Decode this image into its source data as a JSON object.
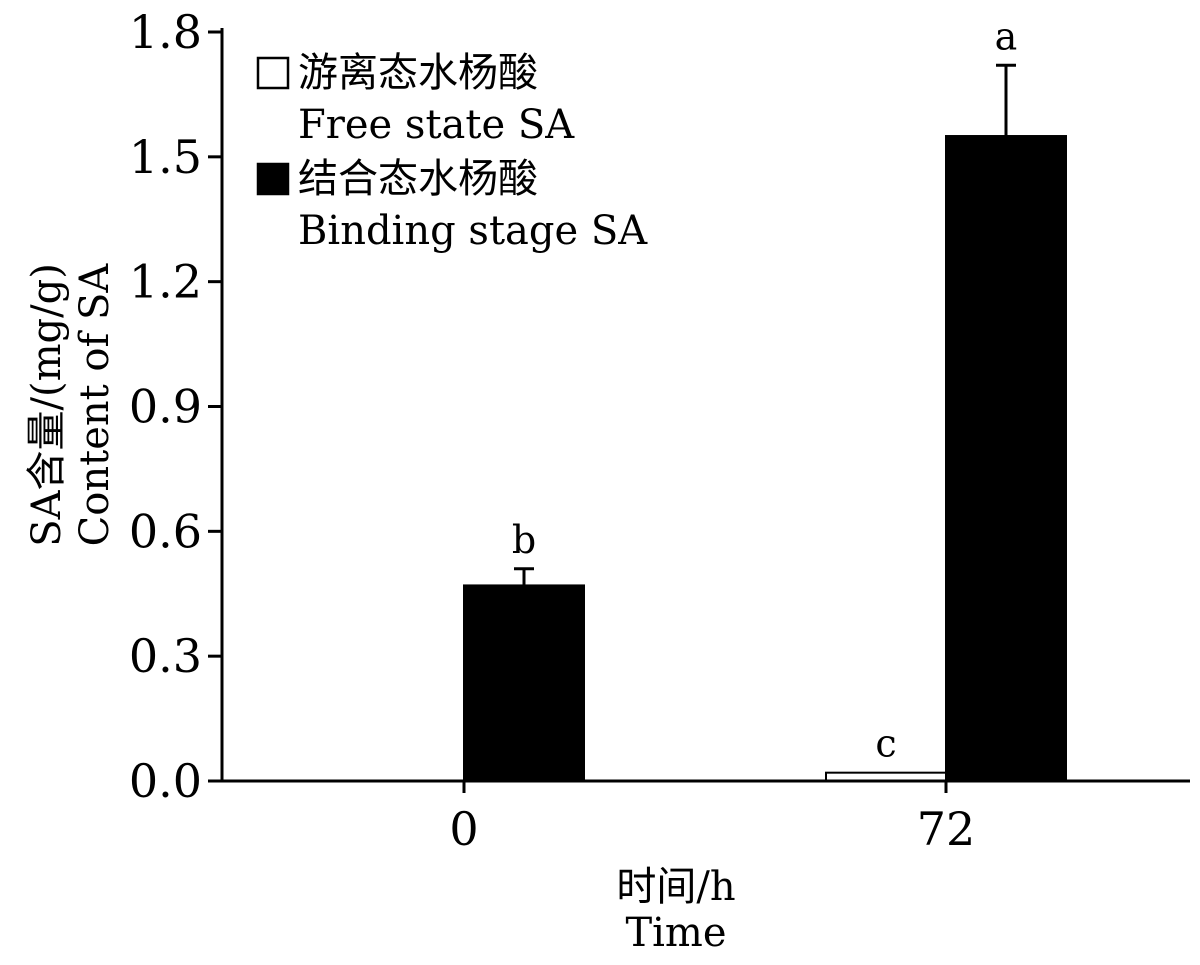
{
  "chart_data": {
    "type": "bar",
    "categories": [
      "0",
      "72"
    ],
    "series": [
      {
        "name": "游离态水杨酸",
        "name_en": "Free state SA",
        "values": [
          0.0,
          0.02
        ],
        "errors": [
          0.0,
          0.0
        ],
        "letters": [
          "",
          "c"
        ]
      },
      {
        "name": "结合态水杨酸",
        "name_en": "Binding stage SA",
        "values": [
          0.47,
          1.55
        ],
        "errors": [
          0.04,
          0.17
        ],
        "letters": [
          "b",
          "a"
        ]
      }
    ],
    "xlabel": "时间/h",
    "xlabel_en": "Time",
    "ylabel": "SA含量/(mg/g)",
    "ylabel_en": "Content of SA",
    "ylim": [
      0,
      1.8
    ],
    "yticks": [
      "0.0",
      "0.3",
      "0.6",
      "0.9",
      "1.2",
      "1.5",
      "1.8"
    ],
    "legend_position": "top-left",
    "grid": false,
    "colors": {
      "free": "#ffffff",
      "binding": "#000000",
      "axis": "#000000"
    }
  }
}
